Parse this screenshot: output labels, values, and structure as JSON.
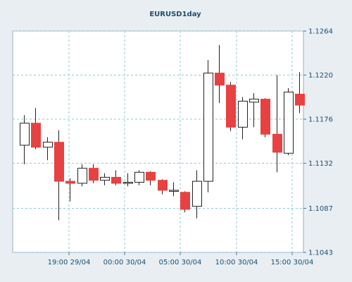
{
  "chart_data": {
    "type": "candlestick",
    "title": "EURUSD1day",
    "y_ticks": [
      1.1264,
      1.122,
      1.1176,
      1.1132,
      1.1087,
      1.1043
    ],
    "y_tick_labels": [
      "1.1264",
      "1.1220",
      "1.1176",
      "1.1132",
      "1.1087",
      "1.1043"
    ],
    "ylim": [
      1.1043,
      1.1264
    ],
    "x_tick_labels": [
      "19:00 29/04",
      "00:00 30/04",
      "05:00 30/04",
      "10:00 30/04",
      "15:00 30/04"
    ],
    "grid": true,
    "colors": {
      "up_body": "#ffffff",
      "down_body": "#e84141",
      "wick": "#222222",
      "grid": "#8fc9d6",
      "axis_text": "#1a4f73",
      "title": "#1f4e6e",
      "background": "#e9eef3",
      "plot_background": "#ffffff"
    },
    "candles": [
      {
        "open": 1.115,
        "high": 1.118,
        "low": 1.1131,
        "close": 1.1172
      },
      {
        "open": 1.1172,
        "high": 1.1187,
        "low": 1.1146,
        "close": 1.1148
      },
      {
        "open": 1.1148,
        "high": 1.1158,
        "low": 1.1135,
        "close": 1.1153
      },
      {
        "open": 1.1153,
        "high": 1.1165,
        "low": 1.1075,
        "close": 1.1114
      },
      {
        "open": 1.1114,
        "high": 1.1117,
        "low": 1.1094,
        "close": 1.1112
      },
      {
        "open": 1.1112,
        "high": 1.1131,
        "low": 1.1109,
        "close": 1.1127
      },
      {
        "open": 1.1127,
        "high": 1.1131,
        "low": 1.1112,
        "close": 1.1115
      },
      {
        "open": 1.1115,
        "high": 1.1122,
        "low": 1.111,
        "close": 1.1118
      },
      {
        "open": 1.1118,
        "high": 1.1125,
        "low": 1.111,
        "close": 1.1112
      },
      {
        "open": 1.1112,
        "high": 1.1122,
        "low": 1.1109,
        "close": 1.1113
      },
      {
        "open": 1.1113,
        "high": 1.1125,
        "low": 1.111,
        "close": 1.1123
      },
      {
        "open": 1.1123,
        "high": 1.1124,
        "low": 1.111,
        "close": 1.1115
      },
      {
        "open": 1.1115,
        "high": 1.1116,
        "low": 1.1101,
        "close": 1.1105
      },
      {
        "open": 1.1105,
        "high": 1.1113,
        "low": 1.1099,
        "close": 1.1105
      },
      {
        "open": 1.1103,
        "high": 1.1104,
        "low": 1.1083,
        "close": 1.1086
      },
      {
        "open": 1.1089,
        "high": 1.1125,
        "low": 1.1077,
        "close": 1.1114
      },
      {
        "open": 1.1114,
        "high": 1.1235,
        "low": 1.1103,
        "close": 1.1222
      },
      {
        "open": 1.1222,
        "high": 1.125,
        "low": 1.1192,
        "close": 1.121
      },
      {
        "open": 1.121,
        "high": 1.1213,
        "low": 1.1164,
        "close": 1.1168
      },
      {
        "open": 1.1168,
        "high": 1.1198,
        "low": 1.1156,
        "close": 1.1194
      },
      {
        "open": 1.1193,
        "high": 1.1202,
        "low": 1.1168,
        "close": 1.1196
      },
      {
        "open": 1.1196,
        "high": 1.1197,
        "low": 1.1158,
        "close": 1.1161
      },
      {
        "open": 1.1161,
        "high": 1.122,
        "low": 1.1123,
        "close": 1.1143
      },
      {
        "open": 1.1142,
        "high": 1.1207,
        "low": 1.114,
        "close": 1.1203
      },
      {
        "open": 1.1201,
        "high": 1.1223,
        "low": 1.1182,
        "close": 1.119
      }
    ]
  }
}
